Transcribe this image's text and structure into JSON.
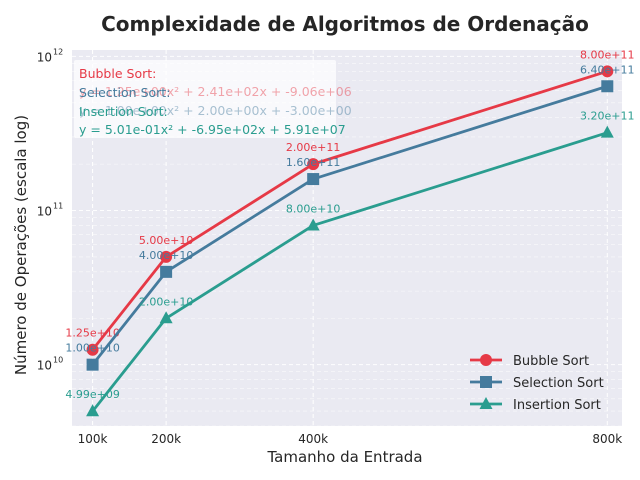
{
  "chart_data": {
    "type": "line",
    "title": "Complexidade de Algoritmos de Ordenação",
    "xlabel": "Tamanho da Entrada",
    "ylabel": "Número de Operações (escala log)",
    "yscale": "log",
    "ylim": [
      4000000000.0,
      1100000000000.0
    ],
    "xlim": [
      72000,
      820000
    ],
    "grid": true,
    "legend_position": "lower-right",
    "x": [
      100000,
      200000,
      400000,
      800000
    ],
    "x_tick_labels": [
      "100k",
      "200k",
      "400k",
      "800k"
    ],
    "y_ticks": [
      {
        "value": 10000000000.0,
        "base": "10",
        "exp": "10"
      },
      {
        "value": 100000000000.0,
        "base": "10",
        "exp": "11"
      },
      {
        "value": 1000000000000.0,
        "base": "10",
        "exp": "12"
      }
    ],
    "series": [
      {
        "name": "Bubble Sort",
        "color": "#e63946",
        "marker": "circle",
        "values": [
          12500000000.0,
          50000000000.0,
          200000000000.0,
          800000000000.0
        ],
        "labels": [
          "1.25e+10",
          "5.00e+10",
          "2.00e+11",
          "8.00e+11"
        ]
      },
      {
        "name": "Selection Sort",
        "color": "#457b9d",
        "marker": "square",
        "values": [
          10000000000.0,
          40000000000.0,
          160000000000.0,
          640000000000.0
        ],
        "labels": [
          "1.00e+10",
          "4.00e+10",
          "1.60e+11",
          "6.40e+11"
        ]
      },
      {
        "name": "Insertion Sort",
        "color": "#2a9d8f",
        "marker": "triangle",
        "values": [
          4990000000.0,
          20000000000.0,
          80000000000.0,
          320000000000.0
        ],
        "labels": [
          "4.99e+09",
          "2.00e+10",
          "8.00e+10",
          "3.20e+11"
        ]
      }
    ],
    "annotations": [
      {
        "color": "#e63946",
        "title": "Bubble Sort:",
        "equation": "y = 1.25e+00x² + 2.41e+02x + -9.06e+06"
      },
      {
        "color": "#457b9d",
        "title": "Selection Sort:",
        "equation": "y = 1.00e+00x² + 2.00e+00x + -3.00e+00"
      },
      {
        "color": "#2a9d8f",
        "title": "Insertion Sort:",
        "equation": "y = 5.01e-01x² + -6.95e+02x + 5.91e+07"
      }
    ]
  }
}
